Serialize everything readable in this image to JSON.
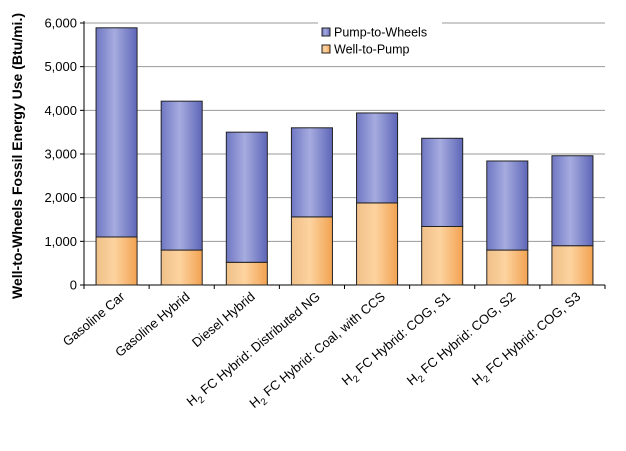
{
  "chart_data": {
    "type": "bar",
    "stacked": true,
    "ylabel": "Well-to-Wheels Fossil Energy Use (Btu/mi.)",
    "ylim": [
      0,
      6000
    ],
    "yticks": [
      0,
      1000,
      2000,
      3000,
      4000,
      5000,
      6000
    ],
    "ytick_labels": [
      "0",
      "1,000",
      "2,000",
      "3,000",
      "4,000",
      "5,000",
      "6,000"
    ],
    "grid": true,
    "legend_position": "top-center",
    "categories": [
      "Gasoline Car",
      "Gasoline Hybrid",
      "Diesel Hybrid",
      "H2 FC Hybrid: Distributed NG",
      "H2 FC Hybrid: Coal, with CCS",
      "H2 FC Hybrid: COG, S1",
      "H2 FC Hybrid: COG, S2",
      "H2 FC Hybrid: COG, S3"
    ],
    "category_labels": [
      {
        "subscript": false,
        "pre": "Gasoline Car",
        "post": ""
      },
      {
        "subscript": false,
        "pre": "Gasoline Hybrid",
        "post": ""
      },
      {
        "subscript": false,
        "pre": "Diesel Hybrid",
        "post": ""
      },
      {
        "subscript": true,
        "pre": "H",
        "sub": "2",
        "post": " FC Hybrid: Distributed NG"
      },
      {
        "subscript": true,
        "pre": "H",
        "sub": "2",
        "post": " FC Hybrid: Coal, with CCS"
      },
      {
        "subscript": true,
        "pre": "H",
        "sub": "2",
        "post": " FC Hybrid: COG, S1"
      },
      {
        "subscript": true,
        "pre": "H",
        "sub": "2",
        "post": " FC Hybrid: COG, S2"
      },
      {
        "subscript": true,
        "pre": "H",
        "sub": "2",
        "post": " FC Hybrid: COG, S3"
      }
    ],
    "series": [
      {
        "name": "Well-to-Pump",
        "color": "#f5a95c",
        "values": [
          1100,
          800,
          520,
          1560,
          1880,
          1340,
          800,
          900
        ]
      },
      {
        "name": "Pump-to-Wheels",
        "color": "#6a72c6",
        "values": [
          4790,
          3410,
          2980,
          2040,
          2060,
          2020,
          2040,
          2060
        ]
      }
    ],
    "legend_order": [
      "Pump-to-Wheels",
      "Well-to-Pump"
    ]
  }
}
